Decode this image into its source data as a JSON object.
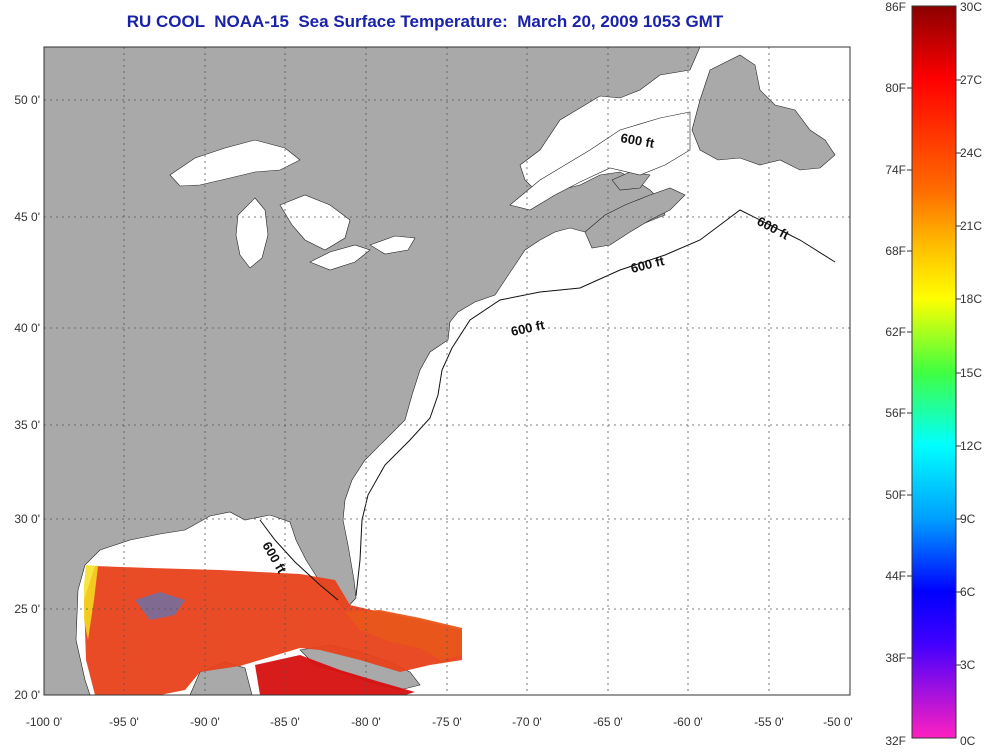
{
  "title": "RU COOL  NOAA-15  Sea Surface Temperature:  March 20, 2009 1053 GMT",
  "latitude_labels": [
    "50 0'",
    "45 0'",
    "40 0'",
    "35 0'",
    "30 0'",
    "25 0'",
    "20 0'"
  ],
  "longitude_labels": [
    "-100 0'",
    "-95 0'",
    "-90 0'",
    "-85 0'",
    "-80 0'",
    "-75 0'",
    "-70 0'",
    "-65 0'",
    "-60 0'",
    "-55 0'",
    "-50 0'"
  ],
  "contour_labels": [
    "600 ft",
    "600 ft",
    "600 ft",
    "600 ft",
    "600 ft"
  ],
  "colorbar": {
    "fahrenheit_labels": [
      "86F",
      "80F",
      "74F",
      "68F",
      "62F",
      "56F",
      "50F",
      "44F",
      "38F",
      "32F"
    ],
    "celsius_labels": [
      "30C",
      "27C",
      "24C",
      "21C",
      "18C",
      "15C",
      "12C",
      "9C",
      "6C",
      "3C",
      "0C"
    ]
  },
  "colors": {
    "title": "#1a23a8",
    "land": "#a9a9a9",
    "ocean": "#ffffff",
    "grid": "#555555",
    "warm_sst": "#e8411a",
    "hot_sst": "#d61010"
  }
}
